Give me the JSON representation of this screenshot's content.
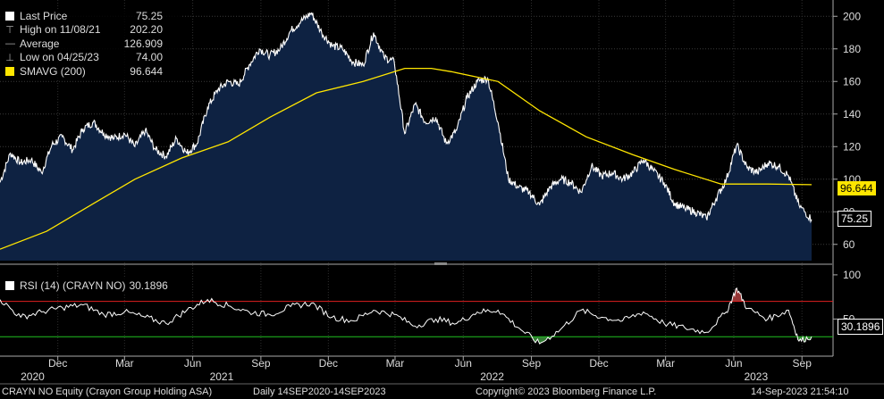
{
  "window": {
    "security": "CRAYN NO Equity (Crayon Group Holding ASA)",
    "period": "Daily 14SEP2020-14SEP2023",
    "copyright": "Copyright© 2023 Bloomberg Finance L.P.",
    "timestamp": "14-Sep-2023 21:54:10"
  },
  "legend": [
    {
      "label": "Last Price",
      "value": "75.25",
      "marker": "square",
      "color": "#ffffff"
    },
    {
      "label": "High on 11/08/21",
      "value": "202.20",
      "marker": "high-marker-icon",
      "color": "#aaaaaa"
    },
    {
      "label": "Average",
      "value": "126.909",
      "marker": "average-marker-icon",
      "color": "#aaaaaa"
    },
    {
      "label": "Low on 04/25/23",
      "value": "74.00",
      "marker": "low-marker-icon",
      "color": "#aaaaaa"
    },
    {
      "label": "SMAVG (200)",
      "value": "96.644",
      "marker": "square",
      "color": "#ffe600"
    }
  ],
  "rsi_legend": {
    "label": "RSI (14) (CRAYN NO)",
    "value": "30.1896"
  },
  "tags": {
    "sma": "96.644",
    "last": "75.25",
    "rsi": "30.1896"
  },
  "colors": {
    "price_fill": "#0e2242",
    "price_line": "#ffffff",
    "sma": "#ffe600",
    "rsi_over": "#e02020",
    "rsi_under": "#20c020"
  },
  "chart_data": [
    {
      "type": "area",
      "title": "CRAYN NO Equity (Crayon Group Holding ASA)",
      "x_range": [
        "2020-09-14",
        "2023-09-14"
      ],
      "ylim": [
        50,
        210
      ],
      "yticks": [
        60,
        80,
        100,
        120,
        140,
        160,
        180,
        200
      ],
      "series": [
        {
          "name": "Last Price",
          "x": [
            "2020-09-14",
            "2020-09-28",
            "2020-10-12",
            "2020-10-26",
            "2020-11-09",
            "2020-11-23",
            "2020-12-07",
            "2020-12-21",
            "2021-01-04",
            "2021-01-18",
            "2021-02-01",
            "2021-02-15",
            "2021-03-01",
            "2021-03-15",
            "2021-03-29",
            "2021-04-12",
            "2021-04-26",
            "2021-05-10",
            "2021-05-24",
            "2021-06-07",
            "2021-06-21",
            "2021-07-05",
            "2021-07-19",
            "2021-08-02",
            "2021-08-16",
            "2021-08-30",
            "2021-09-13",
            "2021-09-27",
            "2021-10-11",
            "2021-10-25",
            "2021-11-08",
            "2021-11-22",
            "2021-12-06",
            "2021-12-20",
            "2022-01-03",
            "2022-01-17",
            "2022-01-31",
            "2022-02-14",
            "2022-02-28",
            "2022-03-14",
            "2022-03-28",
            "2022-04-11",
            "2022-04-25",
            "2022-05-09",
            "2022-05-23",
            "2022-06-06",
            "2022-06-20",
            "2022-07-04",
            "2022-07-18",
            "2022-08-01",
            "2022-08-15",
            "2022-08-29",
            "2022-09-12",
            "2022-09-26",
            "2022-10-10",
            "2022-10-24",
            "2022-11-07",
            "2022-11-21",
            "2022-12-05",
            "2022-12-19",
            "2023-01-02",
            "2023-01-16",
            "2023-01-30",
            "2023-02-13",
            "2023-02-27",
            "2023-03-13",
            "2023-03-27",
            "2023-04-10",
            "2023-04-25",
            "2023-05-08",
            "2023-05-22",
            "2023-06-05",
            "2023-06-19",
            "2023-07-03",
            "2023-07-17",
            "2023-07-31",
            "2023-08-14",
            "2023-08-28",
            "2023-09-14"
          ],
          "values": [
            98,
            116,
            110,
            112,
            104,
            121,
            126,
            118,
            131,
            135,
            128,
            125,
            128,
            120,
            130,
            118,
            114,
            125,
            116,
            122,
            144,
            155,
            160,
            158,
            170,
            180,
            176,
            180,
            191,
            197,
            202,
            190,
            182,
            180,
            172,
            170,
            190,
            175,
            172,
            128,
            146,
            135,
            138,
            122,
            130,
            150,
            160,
            162,
            135,
            100,
            95,
            92,
            84,
            95,
            100,
            98,
            92,
            108,
            102,
            104,
            100,
            104,
            112,
            105,
            98,
            85,
            82,
            80,
            76,
            88,
            100,
            121,
            107,
            104,
            110,
            108,
            102,
            84,
            75.25
          ]
        },
        {
          "name": "SMAVG (200)",
          "x": [
            "2020-09-14",
            "2020-11-16",
            "2021-01-18",
            "2021-03-15",
            "2021-05-17",
            "2021-07-19",
            "2021-09-13",
            "2021-11-15",
            "2022-01-17",
            "2022-03-14",
            "2022-04-19",
            "2022-05-16",
            "2022-07-18",
            "2022-09-12",
            "2022-11-14",
            "2023-01-16",
            "2023-03-13",
            "2023-05-15",
            "2023-07-17",
            "2023-09-14"
          ],
          "values": [
            57,
            68,
            85,
            100,
            113,
            123,
            138,
            153,
            160,
            168,
            168,
            166,
            160,
            142,
            126,
            115,
            106,
            97,
            97,
            96.644
          ]
        }
      ]
    },
    {
      "type": "line",
      "title": "RSI (14) (CRAYN NO)",
      "ylim": [
        10,
        110
      ],
      "yticks": [
        50,
        100
      ],
      "reference_lines": [
        30,
        70
      ],
      "series": [
        {
          "name": "RSI (14) (CRAYN NO)",
          "x": [
            "2020-09-14",
            "2020-10-12",
            "2020-11-09",
            "2020-12-07",
            "2021-01-04",
            "2021-02-01",
            "2021-03-01",
            "2021-03-29",
            "2021-04-26",
            "2021-05-24",
            "2021-06-21",
            "2021-07-19",
            "2021-08-16",
            "2021-09-13",
            "2021-10-11",
            "2021-11-08",
            "2021-12-06",
            "2022-01-03",
            "2022-01-31",
            "2022-02-28",
            "2022-03-28",
            "2022-04-25",
            "2022-05-23",
            "2022-06-20",
            "2022-07-18",
            "2022-08-15",
            "2022-09-12",
            "2022-10-10",
            "2022-11-07",
            "2022-12-05",
            "2023-01-02",
            "2023-01-30",
            "2023-02-27",
            "2023-03-27",
            "2023-04-25",
            "2023-05-22",
            "2023-06-05",
            "2023-06-19",
            "2023-07-17",
            "2023-08-14",
            "2023-08-28",
            "2023-09-14"
          ],
          "values": [
            72,
            52,
            58,
            63,
            66,
            55,
            58,
            52,
            45,
            60,
            72,
            65,
            58,
            55,
            64,
            68,
            52,
            48,
            60,
            55,
            42,
            50,
            45,
            58,
            60,
            40,
            22,
            38,
            60,
            52,
            48,
            58,
            45,
            40,
            35,
            58,
            85,
            62,
            50,
            60,
            25,
            30.1896
          ]
        }
      ]
    }
  ],
  "x_axis": {
    "months": [
      {
        "label": "Dec",
        "date": "2020-12-01"
      },
      {
        "label": "Mar",
        "date": "2021-03-01"
      },
      {
        "label": "Jun",
        "date": "2021-06-01"
      },
      {
        "label": "Sep",
        "date": "2021-09-01"
      },
      {
        "label": "Dec",
        "date": "2021-12-01"
      },
      {
        "label": "Mar",
        "date": "2022-03-01"
      },
      {
        "label": "Jun",
        "date": "2022-06-01"
      },
      {
        "label": "Sep",
        "date": "2022-09-01"
      },
      {
        "label": "Dec",
        "date": "2022-12-01"
      },
      {
        "label": "Mar",
        "date": "2023-03-01"
      },
      {
        "label": "Jun",
        "date": "2023-06-01"
      },
      {
        "label": "Sep",
        "date": "2023-09-01"
      }
    ],
    "years": [
      {
        "label": "2020",
        "date": "2020-10-28"
      },
      {
        "label": "2021",
        "date": "2021-07-10"
      },
      {
        "label": "2022",
        "date": "2022-07-10"
      },
      {
        "label": "2023",
        "date": "2023-07-01"
      }
    ]
  }
}
